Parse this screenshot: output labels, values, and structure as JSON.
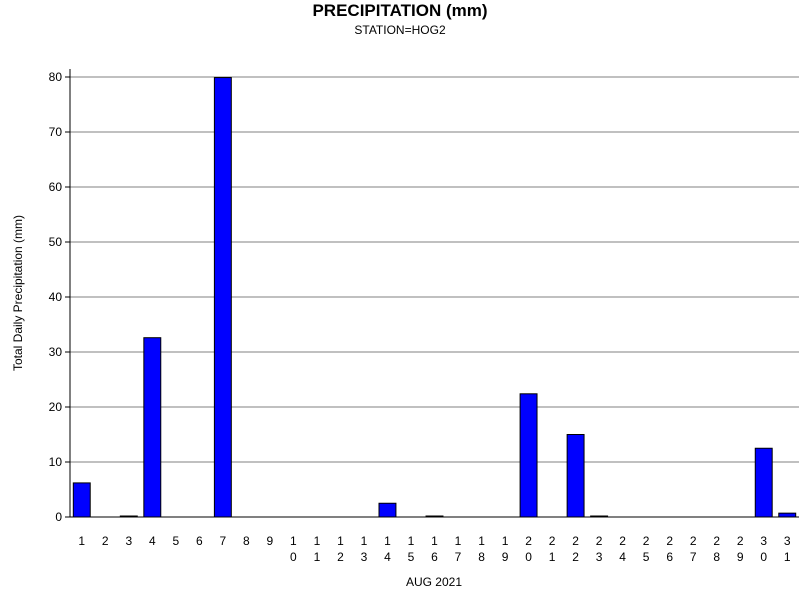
{
  "chart_data": {
    "type": "bar",
    "title": "PRECIPITATION (mm)",
    "subtitle": "STATION=HOG2",
    "xlabel": "AUG 2021",
    "ylabel": "Total Daily Precipitation (mm)",
    "ylim": [
      0,
      80
    ],
    "yticks": [
      0,
      10,
      20,
      30,
      40,
      50,
      60,
      70,
      80
    ],
    "grid": "horizontal",
    "categories": [
      "1",
      "2",
      "3",
      "4",
      "5",
      "6",
      "7",
      "8",
      "9",
      "10",
      "11",
      "12",
      "13",
      "14",
      "15",
      "16",
      "17",
      "18",
      "19",
      "20",
      "21",
      "22",
      "23",
      "24",
      "25",
      "26",
      "27",
      "28",
      "29",
      "30",
      "31"
    ],
    "values": [
      6.2,
      0,
      0.1,
      32.6,
      0,
      0,
      79.9,
      0,
      0,
      0,
      0,
      0,
      0,
      2.5,
      0,
      0.1,
      0,
      0,
      0,
      22.4,
      0,
      15.0,
      0.1,
      0,
      0,
      0,
      0,
      0,
      0,
      12.5,
      0.7
    ],
    "colors": {
      "bar_fill": "#0000ff",
      "bar_stroke": "#000000",
      "grid": "#808080"
    }
  }
}
